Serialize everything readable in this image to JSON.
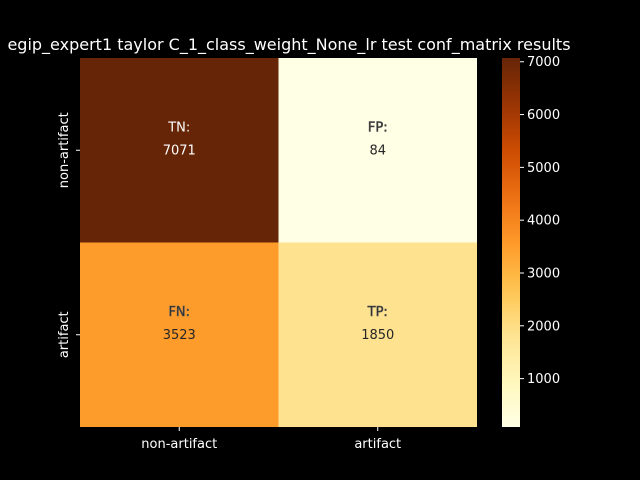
{
  "chart_data": {
    "type": "heatmap",
    "title": "egip_expert1 taylor C_1_class_weight_None_lr test conf_matrix results",
    "xlabel": "",
    "ylabel": "",
    "x_categories": [
      "non-artifact",
      "artifact"
    ],
    "y_categories": [
      "non-artifact",
      "artifact"
    ],
    "cells": [
      [
        {
          "label": "TN:",
          "value": 7071
        },
        {
          "label": "FP:",
          "value": 84
        }
      ],
      [
        {
          "label": "FN:",
          "value": 3523
        },
        {
          "label": "TP:",
          "value": 1850
        }
      ]
    ],
    "colorbar": {
      "colormap": "YlOrBr",
      "ticks": [
        1000,
        2000,
        3000,
        4000,
        5000,
        6000,
        7000
      ],
      "range": [
        84,
        7071
      ]
    },
    "colors": {
      "background": "#000000",
      "text": "#ffffff"
    }
  }
}
